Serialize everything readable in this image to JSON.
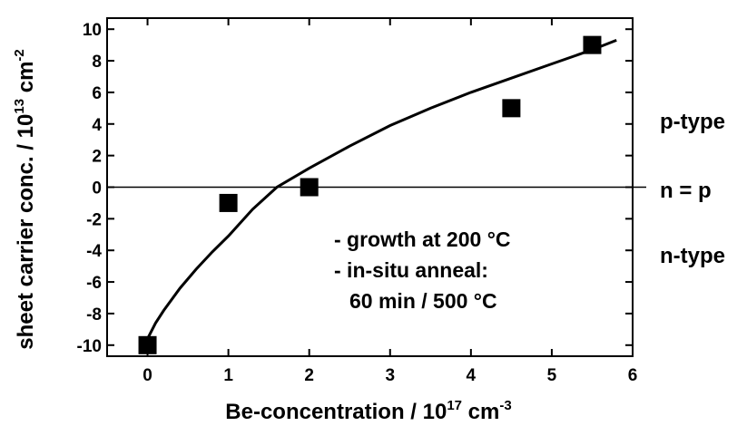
{
  "chart_data": {
    "type": "scatter",
    "xlabel_parts": {
      "main": "Be-concentration / 10",
      "sup": "17",
      "tail": " cm",
      "sup2": "-3"
    },
    "ylabel_parts": {
      "main": "sheet carrier conc. / 10",
      "sup": "13",
      "tail": " cm",
      "sup2": "-2"
    },
    "xlim": [
      -0.5,
      6
    ],
    "ylim": [
      -10.7,
      10.7
    ],
    "x_ticks": [
      0,
      1,
      2,
      3,
      4,
      5,
      6
    ],
    "y_ticks": [
      10,
      8,
      6,
      4,
      2,
      0,
      -2,
      -4,
      -6,
      -8,
      -10
    ],
    "grid": false,
    "series": [
      {
        "marker": "square",
        "x": [
          0,
          1,
          2,
          4.5,
          5.5
        ],
        "y": [
          -10,
          -1,
          0,
          5,
          9
        ]
      }
    ],
    "fit_curve": {
      "x": [
        0,
        0.1,
        0.2,
        0.4,
        0.6,
        0.8,
        1.0,
        1.3,
        1.6,
        2.0,
        2.5,
        3.0,
        3.5,
        4.0,
        4.5,
        5.0,
        5.5,
        5.8
      ],
      "y": [
        -9.6,
        -8.6,
        -7.8,
        -6.4,
        -5.2,
        -4.1,
        -3.1,
        -1.4,
        0.0,
        1.2,
        2.6,
        3.9,
        5.0,
        6.0,
        6.9,
        7.8,
        8.7,
        9.3
      ]
    },
    "reference_line": {
      "y": 0,
      "label": "n = p"
    },
    "region_labels": {
      "upper": "p-type",
      "lower": "n-type"
    },
    "annotations": [
      "- growth at 200 °C",
      "- in-situ anneal:",
      "60 min / 500 °C"
    ]
  }
}
